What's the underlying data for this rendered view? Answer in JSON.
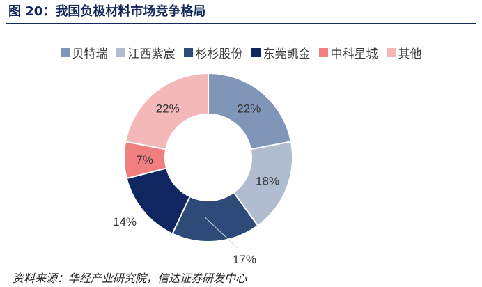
{
  "title": "图 20：我国负极材料市场竞争格局",
  "source": "资料来源：华经产业研究院，信达证券研发中心",
  "chart_data": {
    "type": "pie",
    "donut": true,
    "title": "",
    "legend_position": "top",
    "categories": [
      "贝特瑞",
      "江西紫宸",
      "杉杉股份",
      "东莞凯金",
      "中科星城",
      "其他"
    ],
    "values": [
      22,
      18,
      17,
      14,
      7,
      22
    ],
    "labels": [
      "22%",
      "18%",
      "17%",
      "14%",
      "7%",
      "22%"
    ],
    "colors": [
      "#8096b8",
      "#b0bcd0",
      "#2e4a78",
      "#0f2660",
      "#f08080",
      "#f5b8b8"
    ]
  }
}
